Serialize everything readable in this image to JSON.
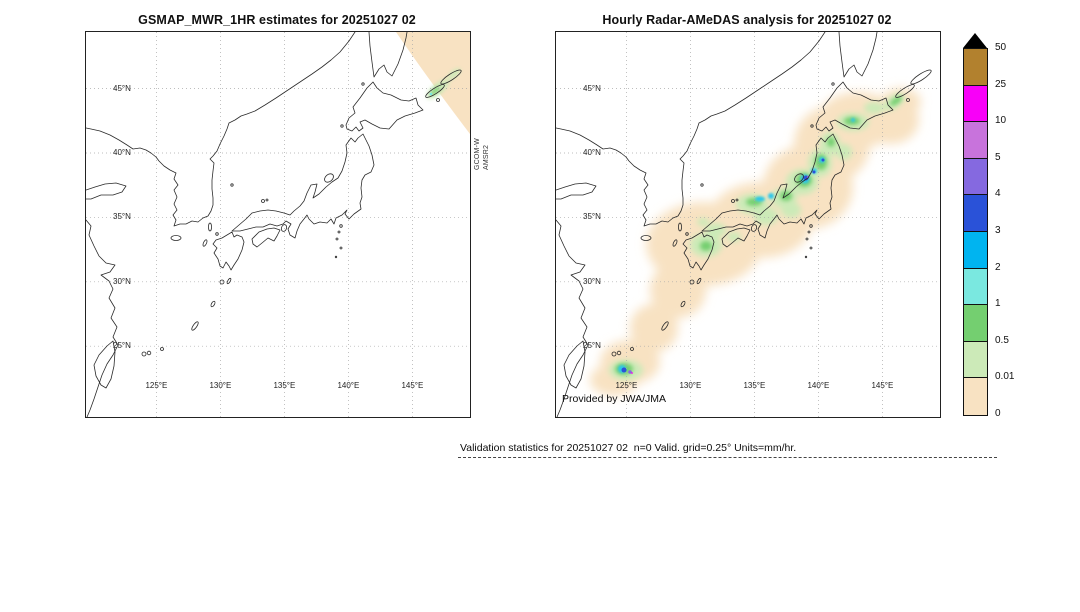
{
  "left_panel": {
    "title": "GSMAP_MWR_1HR estimates for 20251027 02",
    "swath_label_1": "GCOM-W",
    "swath_label_2": "AMSR2"
  },
  "right_panel": {
    "title": "Hourly Radar-AMeDAS analysis for 20251027 02",
    "credit": "Provided by JWA/JMA"
  },
  "axes": {
    "lon_range": [
      119.5,
      149.5
    ],
    "lat_range": [
      19.5,
      49.4
    ],
    "lon_ticks": [
      {
        "label": "125°E",
        "value": 125
      },
      {
        "label": "130°E",
        "value": 130
      },
      {
        "label": "135°E",
        "value": 135
      },
      {
        "label": "140°E",
        "value": 140
      },
      {
        "label": "145°E",
        "value": 145
      }
    ],
    "lat_ticks": [
      {
        "label": "45°N",
        "value": 45
      },
      {
        "label": "40°N",
        "value": 40
      },
      {
        "label": "35°N",
        "value": 35
      },
      {
        "label": "30°N",
        "value": 30
      },
      {
        "label": "25°N",
        "value": 25
      }
    ]
  },
  "colorbar": {
    "units": "mm/hr",
    "boundary_labels": [
      "50",
      "25",
      "10",
      "5",
      "4",
      "3",
      "2",
      "1",
      "0.5",
      "0.01",
      "0"
    ],
    "cell_colors_top_to_bottom": [
      "#b2812e",
      "#f800f8",
      "#c873dc",
      "#8569e0",
      "#2a52d8",
      "#00b4f0",
      "#7ae8e0",
      "#74cf70",
      "#cceab8",
      "#f8e2c2"
    ],
    "overflow_triangle_color": "#000000"
  },
  "footer": {
    "text": "Validation statistics for 20251027 02  n=0 Valid. grid=0.25° Units=mm/hr."
  },
  "chart_data": {
    "type": "heatmap",
    "units": "mm/hr",
    "colorbar_levels": [
      0,
      0.01,
      0.5,
      1,
      2,
      3,
      4,
      5,
      10,
      25,
      50
    ],
    "colorbar_colors_low_to_high": [
      "#f8e2c2",
      "#cceab8",
      "#74cf70",
      "#7ae8e0",
      "#00b4f0",
      "#2a52d8",
      "#8569e0",
      "#c873dc",
      "#f800f8",
      "#b2812e"
    ],
    "overflow_above_max": "black triangle (>50 mm/hr)",
    "panels": [
      {
        "title": "GSMAP_MWR_1HR estimates for 20251027 02",
        "x_ticks": [
          "125°E",
          "130°E",
          "135°E",
          "140°E",
          "145°E"
        ],
        "y_ticks": [
          "45°N",
          "40°N",
          "35°N",
          "30°N",
          "25°N"
        ],
        "content": "No satellite coverage except a GCOM-W AMSR2 swath clipping the northeast corner; swath mostly 0-0.01 mm/hr with traces of 0.01-1 mm/hr near the Kuril Islands",
        "swath_sensor": "GCOM-W AMSR2"
      },
      {
        "title": "Hourly Radar-AMeDAS analysis for 20251027 02",
        "x_ticks": [
          "125°E",
          "130°E",
          "135°E",
          "140°E",
          "145°E"
        ],
        "y_ticks": [
          "45°N",
          "40°N",
          "35°N",
          "30°N",
          "25°N"
        ],
        "content": "Widespread light precipitation (0.01-1 mm/hr) along the Japanese archipelago from the Sakishima Islands through Kyushu, Honshu and Hokkaido, with embedded cells of 1-5 mm/hr over Niigata/Tohoku, the San-in coast and the Yaeyama Islands",
        "annotation": "Provided by JWA/JMA"
      }
    ],
    "footer_note": "Validation statistics for 20251027 02  n=0 Valid. grid=0.25° Units=mm/hr."
  }
}
